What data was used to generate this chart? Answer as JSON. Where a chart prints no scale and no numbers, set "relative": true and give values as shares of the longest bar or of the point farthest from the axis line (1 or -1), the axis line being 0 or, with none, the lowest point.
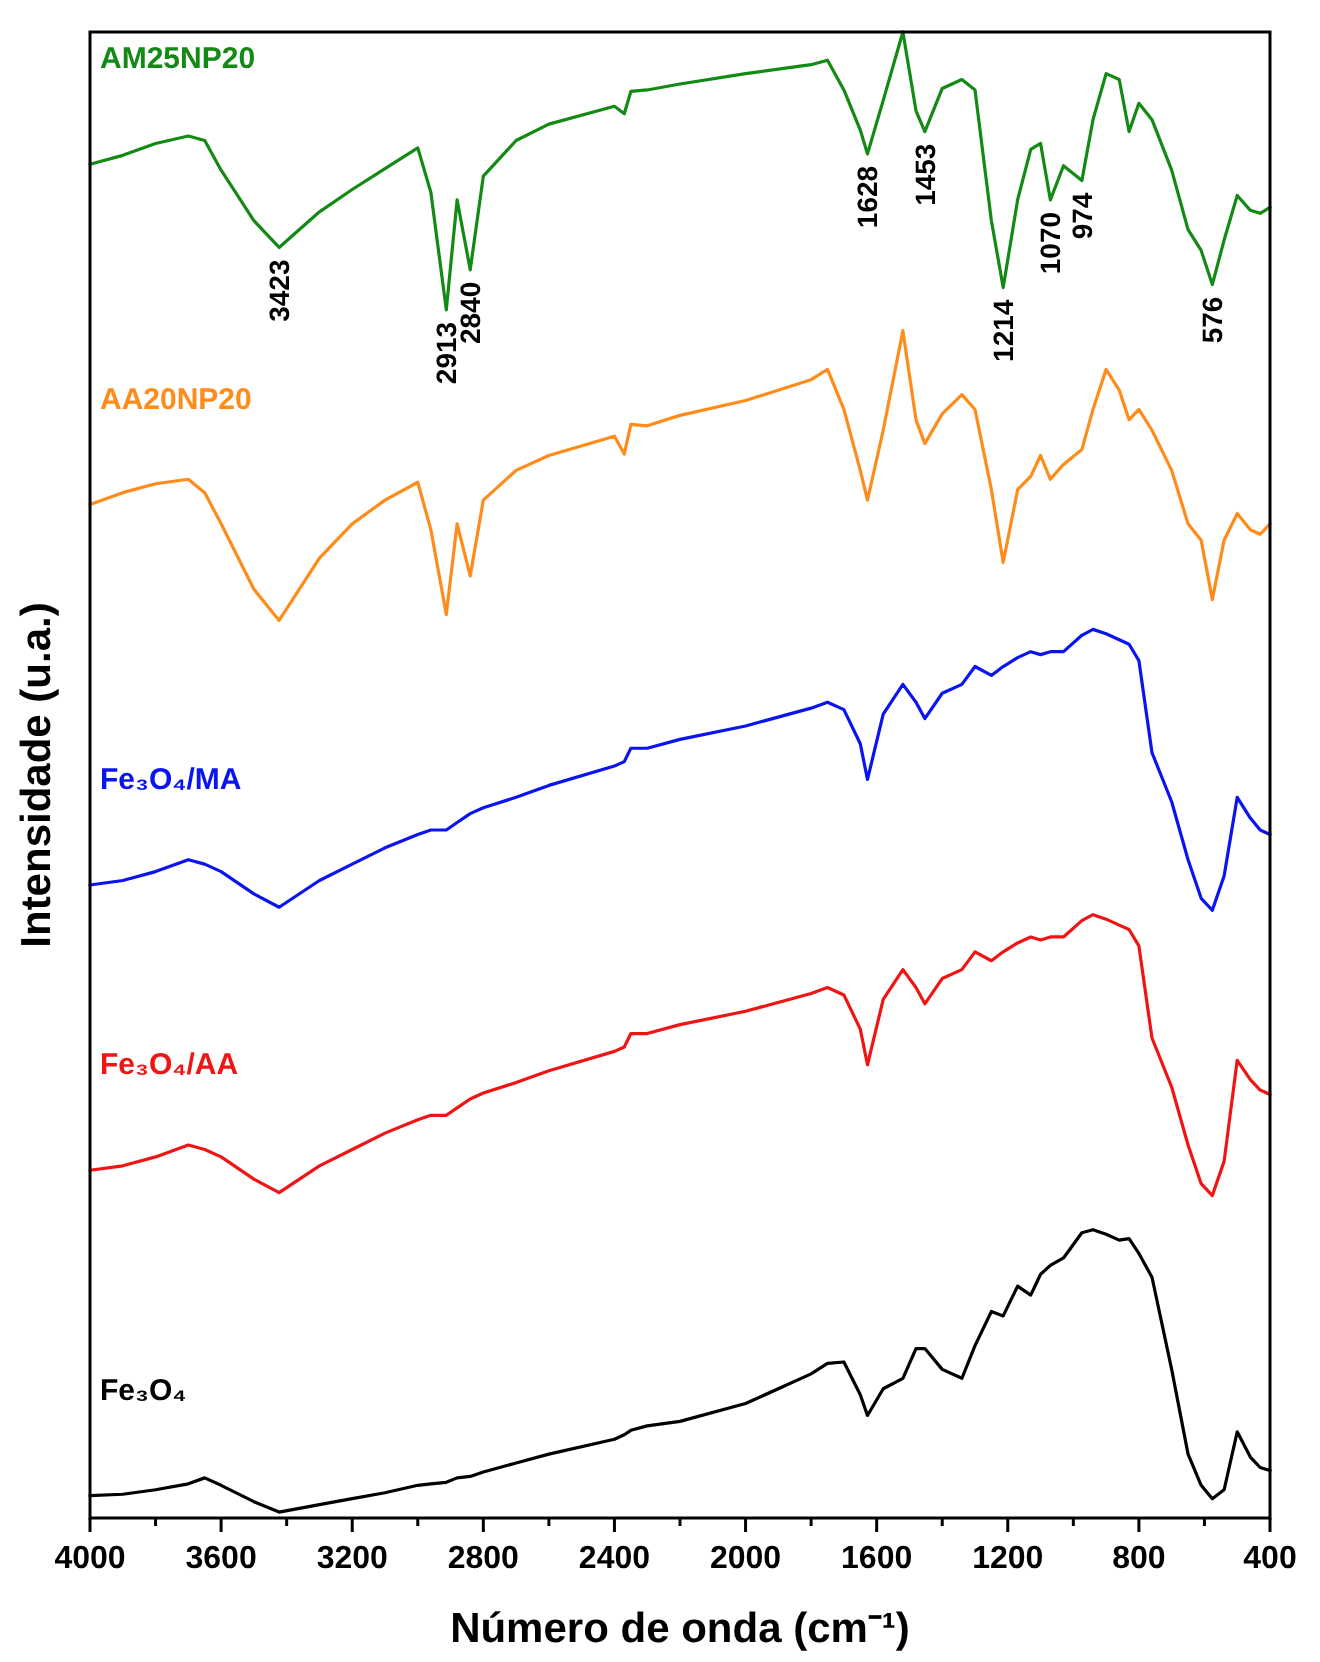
{
  "chart_data": {
    "type": "line",
    "relative": true,
    "grid": false,
    "xlabel": "Número de onda (cm⁻¹)",
    "ylabel": "Intensidade (u.a.)",
    "xlim": [
      4000,
      400
    ],
    "xticks": [
      4000,
      {
        "value": 3800,
        "label": null
      },
      3600,
      {
        "value": 3400,
        "label": null
      },
      3200,
      {
        "value": 3000,
        "label": null
      },
      2800,
      {
        "value": 2600,
        "label": null
      },
      2400,
      {
        "value": 2200,
        "label": null
      },
      2000,
      {
        "value": 1800,
        "label": null
      },
      1600,
      {
        "value": 1400,
        "label": null
      },
      1200,
      {
        "value": 1000,
        "label": null
      },
      800,
      {
        "value": 600,
        "label": null
      },
      400
    ],
    "x": [
      4000,
      3900,
      3800,
      3700,
      3650,
      3600,
      3500,
      3423,
      3300,
      3200,
      3100,
      3000,
      2960,
      2913,
      2880,
      2840,
      2800,
      2700,
      2600,
      2400,
      2370,
      2350,
      2300,
      2200,
      2000,
      1800,
      1750,
      1700,
      1650,
      1628,
      1580,
      1520,
      1480,
      1453,
      1400,
      1340,
      1300,
      1250,
      1214,
      1170,
      1130,
      1100,
      1070,
      1030,
      974,
      940,
      900,
      860,
      830,
      800,
      760,
      700,
      650,
      610,
      576,
      540,
      500,
      460,
      430,
      400
    ],
    "series": [
      {
        "name": "AM25NP20",
        "color": "#138a13",
        "values": [
          0.911,
          0.917,
          0.925,
          0.93,
          0.927,
          0.907,
          0.873,
          0.855,
          0.879,
          0.894,
          0.908,
          0.922,
          0.892,
          0.813,
          0.887,
          0.84,
          0.903,
          0.927,
          0.938,
          0.95,
          0.945,
          0.96,
          0.961,
          0.965,
          0.972,
          0.978,
          0.981,
          0.961,
          0.934,
          0.918,
          0.954,
          1.0,
          0.947,
          0.933,
          0.962,
          0.968,
          0.961,
          0.873,
          0.828,
          0.887,
          0.921,
          0.925,
          0.887,
          0.91,
          0.9,
          0.941,
          0.972,
          0.968,
          0.933,
          0.952,
          0.941,
          0.907,
          0.867,
          0.853,
          0.83,
          0.86,
          0.89,
          0.88,
          0.878,
          0.882
        ]
      },
      {
        "name": "AA20NP20",
        "color": "#ff8c1a",
        "values": [
          0.682,
          0.69,
          0.696,
          0.699,
          0.69,
          0.669,
          0.625,
          0.604,
          0.646,
          0.669,
          0.685,
          0.697,
          0.665,
          0.608,
          0.669,
          0.634,
          0.685,
          0.705,
          0.715,
          0.728,
          0.716,
          0.736,
          0.735,
          0.742,
          0.752,
          0.766,
          0.773,
          0.746,
          0.705,
          0.685,
          0.732,
          0.799,
          0.739,
          0.723,
          0.743,
          0.756,
          0.746,
          0.692,
          0.643,
          0.692,
          0.701,
          0.715,
          0.699,
          0.709,
          0.719,
          0.746,
          0.773,
          0.759,
          0.739,
          0.746,
          0.732,
          0.705,
          0.669,
          0.658,
          0.618,
          0.658,
          0.676,
          0.665,
          0.662,
          0.669
        ]
      },
      {
        "name": "Fe₃O₄/MA",
        "color": "#0a14f0",
        "values": [
          0.426,
          0.429,
          0.435,
          0.443,
          0.44,
          0.435,
          0.42,
          0.411,
          0.429,
          0.44,
          0.451,
          0.46,
          0.463,
          0.463,
          0.468,
          0.474,
          0.478,
          0.485,
          0.493,
          0.506,
          0.509,
          0.518,
          0.518,
          0.524,
          0.533,
          0.545,
          0.549,
          0.544,
          0.521,
          0.497,
          0.541,
          0.561,
          0.549,
          0.538,
          0.555,
          0.561,
          0.573,
          0.567,
          0.573,
          0.579,
          0.583,
          0.581,
          0.583,
          0.583,
          0.594,
          0.598,
          0.595,
          0.591,
          0.588,
          0.577,
          0.515,
          0.482,
          0.443,
          0.417,
          0.409,
          0.432,
          0.485,
          0.471,
          0.463,
          0.46
        ]
      },
      {
        "name": "Fe₃O₄/AA",
        "color": "#f01414",
        "values": [
          0.234,
          0.237,
          0.243,
          0.251,
          0.248,
          0.243,
          0.228,
          0.219,
          0.237,
          0.248,
          0.259,
          0.268,
          0.271,
          0.271,
          0.276,
          0.282,
          0.286,
          0.293,
          0.301,
          0.314,
          0.317,
          0.326,
          0.326,
          0.332,
          0.341,
          0.353,
          0.357,
          0.352,
          0.329,
          0.305,
          0.349,
          0.369,
          0.357,
          0.346,
          0.363,
          0.369,
          0.381,
          0.375,
          0.381,
          0.387,
          0.391,
          0.389,
          0.391,
          0.391,
          0.402,
          0.406,
          0.403,
          0.399,
          0.396,
          0.385,
          0.323,
          0.29,
          0.251,
          0.225,
          0.217,
          0.24,
          0.308,
          0.295,
          0.288,
          0.285
        ]
      },
      {
        "name": "Fe₃O₄",
        "color": "#000000",
        "values": [
          0.015,
          0.016,
          0.019,
          0.023,
          0.027,
          0.022,
          0.011,
          0.004,
          0.009,
          0.013,
          0.017,
          0.022,
          0.023,
          0.024,
          0.027,
          0.028,
          0.031,
          0.037,
          0.043,
          0.053,
          0.056,
          0.059,
          0.062,
          0.065,
          0.077,
          0.097,
          0.104,
          0.105,
          0.083,
          0.069,
          0.087,
          0.094,
          0.114,
          0.114,
          0.1,
          0.094,
          0.116,
          0.139,
          0.136,
          0.156,
          0.15,
          0.164,
          0.17,
          0.175,
          0.192,
          0.194,
          0.191,
          0.187,
          0.188,
          0.178,
          0.162,
          0.1,
          0.043,
          0.022,
          0.013,
          0.019,
          0.058,
          0.041,
          0.034,
          0.032
        ]
      }
    ],
    "annotations": [
      {
        "text": "3423",
        "x": 3423,
        "y": 0.855
      },
      {
        "text": "2913",
        "x": 2913,
        "y": 0.813
      },
      {
        "text": "2840",
        "x": 2840,
        "y": 0.84
      },
      {
        "text": "1628",
        "x": 1628,
        "y": 0.918
      },
      {
        "text": "1453",
        "x": 1453,
        "y": 0.933
      },
      {
        "text": "1214",
        "x": 1214,
        "y": 0.828
      },
      {
        "text": "1070",
        "x": 1070,
        "y": 0.887
      },
      {
        "text": "974",
        "x": 974,
        "y": 0.9
      },
      {
        "text": "576",
        "x": 576,
        "y": 0.83
      }
    ]
  }
}
